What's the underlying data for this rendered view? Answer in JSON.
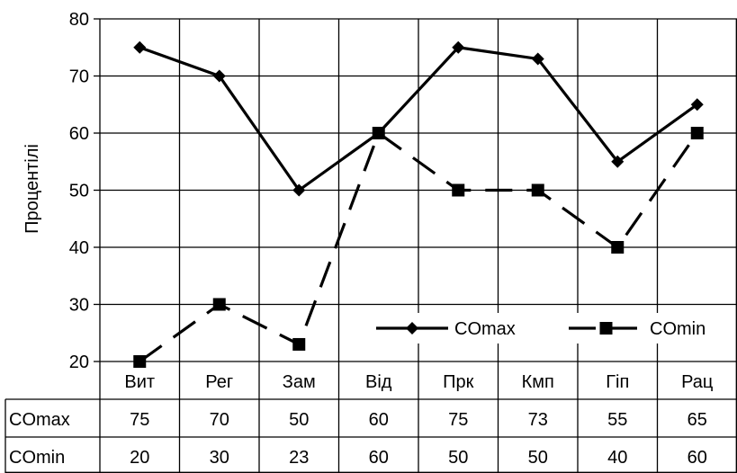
{
  "chart_data": {
    "type": "line",
    "title": "",
    "xlabel": "",
    "ylabel": "Процентілі",
    "ylim": [
      20,
      80
    ],
    "yticks": [
      20,
      30,
      40,
      50,
      60,
      70,
      80
    ],
    "grid": true,
    "legend_position": "bottom-right",
    "categories": [
      "Вит",
      "Рег",
      "Зам",
      "Від",
      "Прк",
      "Кмп",
      "Гіп",
      "Рац"
    ],
    "series": [
      {
        "name": "COmax",
        "values": [
          75,
          70,
          50,
          60,
          75,
          73,
          55,
          65
        ],
        "style": "solid",
        "marker": "diamond",
        "color": "#000000"
      },
      {
        "name": "COmin",
        "values": [
          20,
          30,
          23,
          60,
          50,
          50,
          40,
          60
        ],
        "style": "dashed",
        "marker": "square",
        "color": "#000000"
      }
    ],
    "data_table": true
  }
}
